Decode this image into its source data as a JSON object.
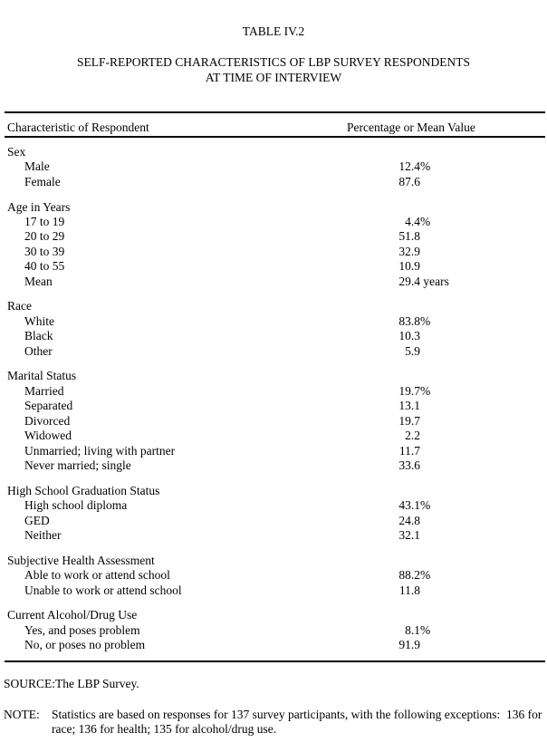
{
  "colors": {
    "background": "#ffffff",
    "text": "#000000",
    "rule": "#000000"
  },
  "page": {
    "table_number": "TABLE IV.2",
    "title_line1": "SELF-REPORTED CHARACTERISTICS OF LBP SURVEY RESPONDENTS",
    "title_line2": "AT TIME OF INTERVIEW"
  },
  "table": {
    "col1_header": "Characteristic of Respondent",
    "col2_header": "Percentage or Mean Value",
    "sections": [
      {
        "label": "Sex",
        "rows": [
          {
            "label": "Male",
            "num": "12.4",
            "suffix": "%"
          },
          {
            "label": "Female",
            "num": "87.6",
            "suffix": ""
          }
        ]
      },
      {
        "label": "Age in Years",
        "rows": [
          {
            "label": "17 to 19",
            "num": "4.4",
            "suffix": "%"
          },
          {
            "label": "20 to 29",
            "num": "51.8",
            "suffix": ""
          },
          {
            "label": "30 to 39",
            "num": "32.9",
            "suffix": ""
          },
          {
            "label": "40 to 55",
            "num": "10.9",
            "suffix": ""
          },
          {
            "label": "Mean",
            "num": "29.4",
            "suffix": " years"
          }
        ]
      },
      {
        "label": "Race",
        "rows": [
          {
            "label": "White",
            "num": "83.8",
            "suffix": "%"
          },
          {
            "label": "Black",
            "num": "10.3",
            "suffix": ""
          },
          {
            "label": "Other",
            "num": "5.9",
            "suffix": ""
          }
        ]
      },
      {
        "label": "Marital Status",
        "rows": [
          {
            "label": "Married",
            "num": "19.7",
            "suffix": "%"
          },
          {
            "label": "Separated",
            "num": "13.1",
            "suffix": ""
          },
          {
            "label": "Divorced",
            "num": "19.7",
            "suffix": ""
          },
          {
            "label": "Widowed",
            "num": "2.2",
            "suffix": ""
          },
          {
            "label": "Unmarried; living with partner",
            "num": "11.7",
            "suffix": ""
          },
          {
            "label": "Never married; single",
            "num": "33.6",
            "suffix": ""
          }
        ]
      },
      {
        "label": "High School Graduation Status",
        "rows": [
          {
            "label": "High school diploma",
            "num": "43.1",
            "suffix": "%"
          },
          {
            "label": "GED",
            "num": "24.8",
            "suffix": ""
          },
          {
            "label": "Neither",
            "num": "32.1",
            "suffix": ""
          }
        ]
      },
      {
        "label": "Subjective Health Assessment",
        "rows": [
          {
            "label": "Able to work or attend school",
            "num": "88.2",
            "suffix": "%"
          },
          {
            "label": "Unable to work or attend school",
            "num": "11.8",
            "suffix": ""
          }
        ]
      },
      {
        "label": "Current Alcohol/Drug Use",
        "rows": [
          {
            "label": "Yes, and poses problem",
            "num": "8.1",
            "suffix": "%"
          },
          {
            "label": "No, or poses no problem",
            "num": "91.9",
            "suffix": ""
          }
        ]
      }
    ]
  },
  "footer": {
    "source_label": "SOURCE:",
    "source_text": "The LBP Survey.",
    "note_label": "NOTE:",
    "note_text": "Statistics are based on responses for 137 survey participants, with the following exceptions:  136 for race; 136 for health; 135 for alcohol/drug use."
  }
}
